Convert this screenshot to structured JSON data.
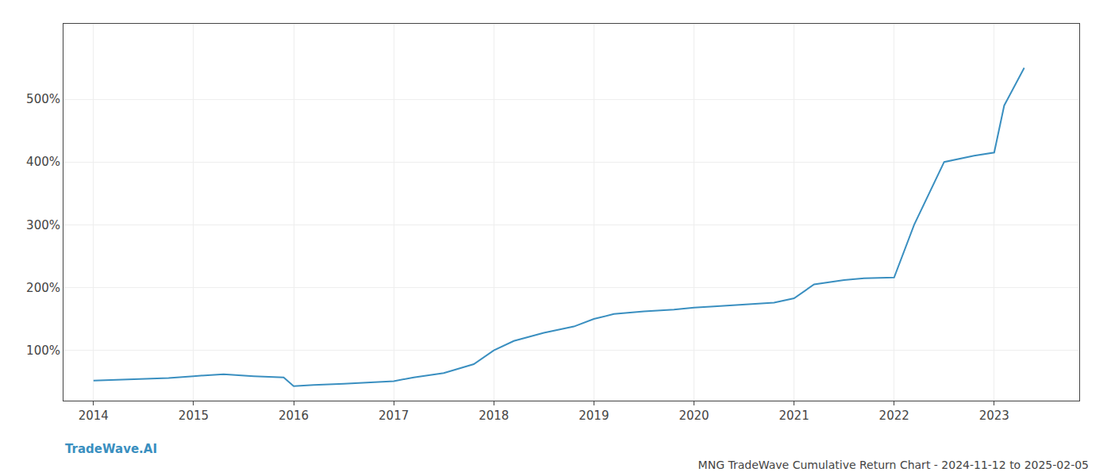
{
  "chart_data": {
    "type": "line",
    "title": "MNG TradeWave Cumulative Return Chart - 2024-11-12 to 2025-02-05",
    "annotations": [
      "TradeWave.AI"
    ],
    "x": [
      2014.0,
      2014.2,
      2014.5,
      2014.75,
      2015.0,
      2015.3,
      2015.6,
      2015.9,
      2016.0,
      2016.2,
      2016.5,
      2016.8,
      2017.0,
      2017.2,
      2017.5,
      2017.8,
      2018.0,
      2018.2,
      2018.5,
      2018.8,
      2019.0,
      2019.2,
      2019.5,
      2019.8,
      2020.0,
      2020.2,
      2020.5,
      2020.8,
      2021.0,
      2021.2,
      2021.5,
      2021.7,
      2022.0,
      2022.2,
      2022.5,
      2022.8,
      2023.0,
      2023.1,
      2023.3
    ],
    "values": [
      52,
      53,
      54,
      56,
      59,
      62,
      59,
      57,
      43,
      45,
      47,
      49,
      51,
      57,
      64,
      78,
      100,
      115,
      128,
      138,
      150,
      158,
      162,
      165,
      168,
      170,
      173,
      176,
      183,
      205,
      212,
      215,
      216,
      300,
      400,
      410,
      415,
      490,
      550
    ],
    "color": "#3a8fc0",
    "xlim": [
      2013.7,
      2023.85
    ],
    "xticks": [
      2014,
      2015,
      2016,
      2017,
      2018,
      2019,
      2020,
      2021,
      2022,
      2023
    ],
    "ylim": [
      20,
      620
    ],
    "yticks": [
      {
        "value": 100,
        "label": "100%"
      },
      {
        "value": 200,
        "label": "200%"
      },
      {
        "value": 300,
        "label": "300%"
      },
      {
        "value": 400,
        "label": "400%"
      },
      {
        "value": 500,
        "label": "500%"
      }
    ],
    "grid": true
  }
}
